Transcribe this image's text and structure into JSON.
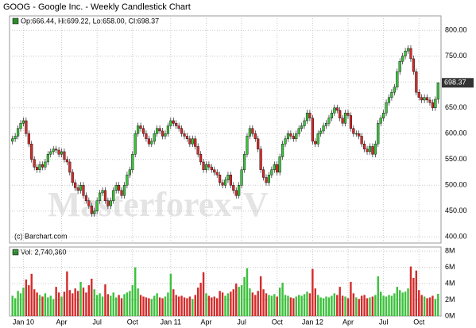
{
  "chart_data": {
    "type": "candlestick",
    "title": "GOOG - Google Inc. - Weekly Candlestick Chart",
    "legend_text": "Op:666.44, Hi:699.22, Lo:658.00, Cl:698.37",
    "credit": "(c) Barchart.com",
    "watermark": "Masterforex-V",
    "up_color": "#3cc13c",
    "down_color": "#d42a2a",
    "grid": true,
    "categories": [
      null,
      null,
      null,
      null,
      "Jan 10",
      null,
      null,
      null,
      null,
      null,
      null,
      null,
      null,
      null,
      null,
      null,
      null,
      null,
      "Apr",
      null,
      null,
      null,
      null,
      null,
      null,
      null,
      null,
      null,
      null,
      null,
      null,
      "Jul",
      null,
      null,
      null,
      null,
      null,
      null,
      null,
      null,
      null,
      null,
      null,
      null,
      "Oct",
      null,
      null,
      null,
      null,
      null,
      null,
      null,
      null,
      null,
      null,
      null,
      null,
      null,
      "Jan 11",
      null,
      null,
      null,
      null,
      null,
      null,
      null,
      null,
      null,
      null,
      null,
      null,
      "Apr",
      null,
      null,
      null,
      null,
      null,
      null,
      null,
      null,
      null,
      null,
      null,
      null,
      "Jul",
      null,
      null,
      null,
      null,
      null,
      null,
      null,
      null,
      null,
      null,
      null,
      null,
      "Oct",
      null,
      null,
      null,
      null,
      null,
      null,
      null,
      null,
      null,
      null,
      null,
      null,
      "Jan 12",
      null,
      null,
      null,
      null,
      null,
      null,
      null,
      null,
      null,
      null,
      null,
      null,
      "Apr",
      null,
      null,
      null,
      null,
      null,
      null,
      null,
      null,
      null,
      null,
      null,
      null,
      "Jul",
      null,
      null,
      null,
      null,
      null,
      null,
      null,
      null,
      null,
      null,
      null,
      null,
      "Oct",
      null,
      null,
      null,
      null,
      null,
      null,
      null
    ],
    "open": [
      585,
      590,
      595,
      610,
      620,
      625,
      600,
      580,
      550,
      535,
      530,
      540,
      535,
      545,
      560,
      565,
      570,
      568,
      560,
      565,
      550,
      545,
      525,
      505,
      495,
      490,
      500,
      480,
      470,
      460,
      445,
      450,
      470,
      485,
      490,
      470,
      460,
      470,
      490,
      500,
      490,
      480,
      500,
      520,
      530,
      560,
      600,
      615,
      610,
      600,
      590,
      580,
      585,
      600,
      610,
      605,
      595,
      600,
      615,
      625,
      620,
      615,
      610,
      600,
      595,
      590,
      580,
      590,
      575,
      560,
      545,
      530,
      540,
      535,
      530,
      525,
      520,
      505,
      500,
      510,
      520,
      500,
      490,
      480,
      500,
      530,
      560,
      595,
      610,
      600,
      590,
      570,
      530,
      515,
      505,
      520,
      530,
      540,
      525,
      555,
      580,
      590,
      600,
      595,
      590,
      600,
      610,
      615,
      625,
      640,
      630,
      585,
      580,
      600,
      605,
      615,
      620,
      630,
      640,
      650,
      645,
      630,
      620,
      640,
      635,
      610,
      600,
      600,
      595,
      580,
      570,
      565,
      575,
      560,
      580,
      620,
      630,
      640,
      660,
      670,
      680,
      690,
      720,
      740,
      750,
      760,
      765,
      745,
      720,
      680,
      670,
      665,
      670,
      665,
      660,
      650,
      666.44
    ],
    "high": [
      596,
      601,
      616,
      626,
      631,
      631,
      606,
      586,
      556,
      541,
      546,
      546,
      551,
      566,
      571,
      576,
      576,
      574,
      571,
      571,
      556,
      551,
      531,
      511,
      501,
      506,
      506,
      486,
      476,
      466,
      456,
      476,
      491,
      496,
      496,
      476,
      476,
      496,
      506,
      506,
      496,
      506,
      526,
      536,
      566,
      606,
      621,
      621,
      616,
      606,
      596,
      591,
      606,
      616,
      616,
      611,
      606,
      621,
      631,
      631,
      626,
      621,
      616,
      606,
      601,
      596,
      596,
      596,
      581,
      566,
      551,
      546,
      546,
      541,
      536,
      531,
      526,
      511,
      516,
      526,
      526,
      506,
      496,
      506,
      536,
      566,
      601,
      616,
      616,
      606,
      596,
      576,
      536,
      521,
      526,
      536,
      546,
      546,
      561,
      586,
      596,
      606,
      606,
      601,
      606,
      616,
      621,
      631,
      646,
      646,
      636,
      591,
      606,
      611,
      621,
      626,
      636,
      646,
      656,
      656,
      651,
      636,
      646,
      646,
      641,
      616,
      606,
      606,
      601,
      586,
      576,
      581,
      581,
      586,
      626,
      636,
      646,
      666,
      676,
      686,
      696,
      726,
      746,
      756,
      766,
      771,
      771,
      751,
      726,
      686,
      676,
      676,
      676,
      671,
      666,
      672,
      699.22
    ],
    "low": [
      579,
      584,
      589,
      604,
      614,
      594,
      574,
      544,
      529,
      524,
      524,
      529,
      529,
      539,
      554,
      559,
      562,
      554,
      554,
      544,
      539,
      519,
      499,
      489,
      484,
      484,
      474,
      464,
      454,
      439,
      439,
      444,
      464,
      479,
      464,
      454,
      454,
      464,
      484,
      484,
      474,
      474,
      494,
      514,
      524,
      554,
      594,
      604,
      594,
      584,
      574,
      574,
      579,
      594,
      599,
      589,
      589,
      594,
      609,
      614,
      609,
      604,
      594,
      589,
      584,
      574,
      574,
      569,
      554,
      539,
      524,
      524,
      529,
      524,
      519,
      514,
      499,
      494,
      494,
      504,
      494,
      484,
      474,
      474,
      494,
      524,
      554,
      589,
      594,
      584,
      564,
      524,
      509,
      499,
      499,
      514,
      524,
      519,
      519,
      549,
      574,
      584,
      589,
      584,
      584,
      594,
      604,
      609,
      619,
      624,
      579,
      574,
      574,
      594,
      599,
      609,
      614,
      624,
      634,
      639,
      624,
      614,
      614,
      629,
      604,
      594,
      594,
      589,
      574,
      564,
      559,
      559,
      554,
      554,
      574,
      614,
      624,
      634,
      654,
      664,
      674,
      684,
      714,
      734,
      744,
      754,
      739,
      714,
      674,
      664,
      659,
      659,
      659,
      654,
      644,
      644,
      658
    ],
    "close": [
      590,
      595,
      610,
      620,
      625,
      600,
      580,
      550,
      535,
      530,
      540,
      535,
      545,
      560,
      565,
      570,
      568,
      560,
      565,
      550,
      545,
      525,
      505,
      495,
      490,
      500,
      480,
      470,
      460,
      445,
      450,
      470,
      485,
      490,
      470,
      460,
      470,
      490,
      500,
      490,
      480,
      500,
      520,
      530,
      560,
      600,
      615,
      610,
      600,
      590,
      580,
      585,
      600,
      610,
      605,
      595,
      600,
      615,
      625,
      620,
      615,
      610,
      600,
      595,
      590,
      580,
      590,
      575,
      560,
      545,
      530,
      540,
      535,
      530,
      525,
      520,
      505,
      500,
      510,
      520,
      500,
      490,
      480,
      500,
      530,
      560,
      595,
      610,
      600,
      590,
      570,
      530,
      515,
      505,
      520,
      530,
      540,
      525,
      555,
      580,
      590,
      600,
      595,
      590,
      600,
      610,
      615,
      625,
      640,
      630,
      585,
      580,
      600,
      605,
      615,
      620,
      630,
      640,
      650,
      645,
      630,
      620,
      640,
      635,
      610,
      600,
      600,
      595,
      580,
      570,
      565,
      575,
      560,
      580,
      620,
      630,
      640,
      660,
      670,
      680,
      690,
      720,
      740,
      750,
      760,
      765,
      745,
      720,
      680,
      670,
      665,
      670,
      665,
      660,
      650,
      666.44,
      698.37
    ],
    "last_price": 698.37,
    "ylim": [
      388,
      828
    ],
    "yticks": [
      {
        "value": 400,
        "label": "400.00"
      },
      {
        "value": 450,
        "label": "450.00"
      },
      {
        "value": 500,
        "label": "500.00"
      },
      {
        "value": 550,
        "label": "550.00"
      },
      {
        "value": 600,
        "label": "600.00"
      },
      {
        "value": 650,
        "label": "650.00"
      },
      {
        "value": 700,
        "label": "700.00"
      },
      {
        "value": 750,
        "label": "750.00"
      },
      {
        "value": 800,
        "label": "800.00"
      }
    ],
    "volume": {
      "legend_text": "Vol: 2,740,360",
      "ylim": [
        0,
        8.5
      ],
      "yticks": [
        {
          "value": 0,
          "label": "0M"
        },
        {
          "value": 2,
          "label": "2M"
        },
        {
          "value": 4,
          "label": "4M"
        },
        {
          "value": 6,
          "label": "6M"
        },
        {
          "value": 8,
          "label": "8M"
        }
      ],
      "values": [
        2.5,
        2.2,
        3.1,
        2.8,
        3.5,
        4.5,
        3.8,
        5.2,
        3.3,
        2.9,
        2.6,
        2.4,
        2.8,
        2.3,
        2.5,
        2.1,
        3.6,
        2.9,
        2.4,
        3.0,
        5.5,
        3.2,
        2.8,
        3.4,
        3.1,
        4.2,
        3.5,
        2.9,
        3.8,
        4.6,
        3.3,
        2.6,
        2.8,
        2.4,
        3.9,
        2.7,
        2.5,
        2.9,
        2.3,
        2.6,
        2.2,
        2.7,
        2.9,
        3.1,
        3.8,
        6.0,
        3.4,
        2.6,
        2.4,
        2.3,
        2.2,
        2.1,
        2.5,
        2.8,
        2.3,
        2.2,
        2.4,
        2.9,
        5.2,
        3.3,
        2.6,
        2.4,
        2.5,
        2.3,
        2.2,
        2.4,
        2.1,
        2.6,
        3.5,
        4.1,
        5.4,
        2.8,
        2.5,
        2.3,
        2.4,
        2.2,
        3.1,
        2.9,
        2.5,
        2.8,
        3.0,
        3.3,
        4.0,
        3.6,
        3.8,
        4.8,
        5.9,
        3.4,
        2.9,
        2.6,
        3.1,
        4.9,
        3.3,
        2.8,
        2.6,
        2.5,
        2.7,
        2.4,
        3.5,
        4.1,
        2.6,
        2.5,
        2.3,
        2.2,
        2.4,
        2.6,
        2.5,
        2.7,
        3.0,
        2.8,
        5.8,
        3.4,
        2.6,
        2.3,
        2.2,
        2.4,
        2.3,
        2.5,
        2.8,
        2.6,
        3.6,
        2.5,
        2.4,
        2.2,
        4.2,
        2.8,
        2.3,
        2.1,
        2.5,
        2.6,
        2.2,
        2.3,
        2.4,
        2.6,
        4.9,
        3.0,
        2.5,
        2.4,
        2.6,
        2.5,
        2.8,
        3.6,
        3.2,
        2.9,
        3.0,
        3.4,
        6.1,
        4.7,
        5.6,
        3.2,
        2.6,
        2.4,
        2.2,
        2.3,
        2.5,
        2.1,
        2.74036
      ]
    }
  }
}
